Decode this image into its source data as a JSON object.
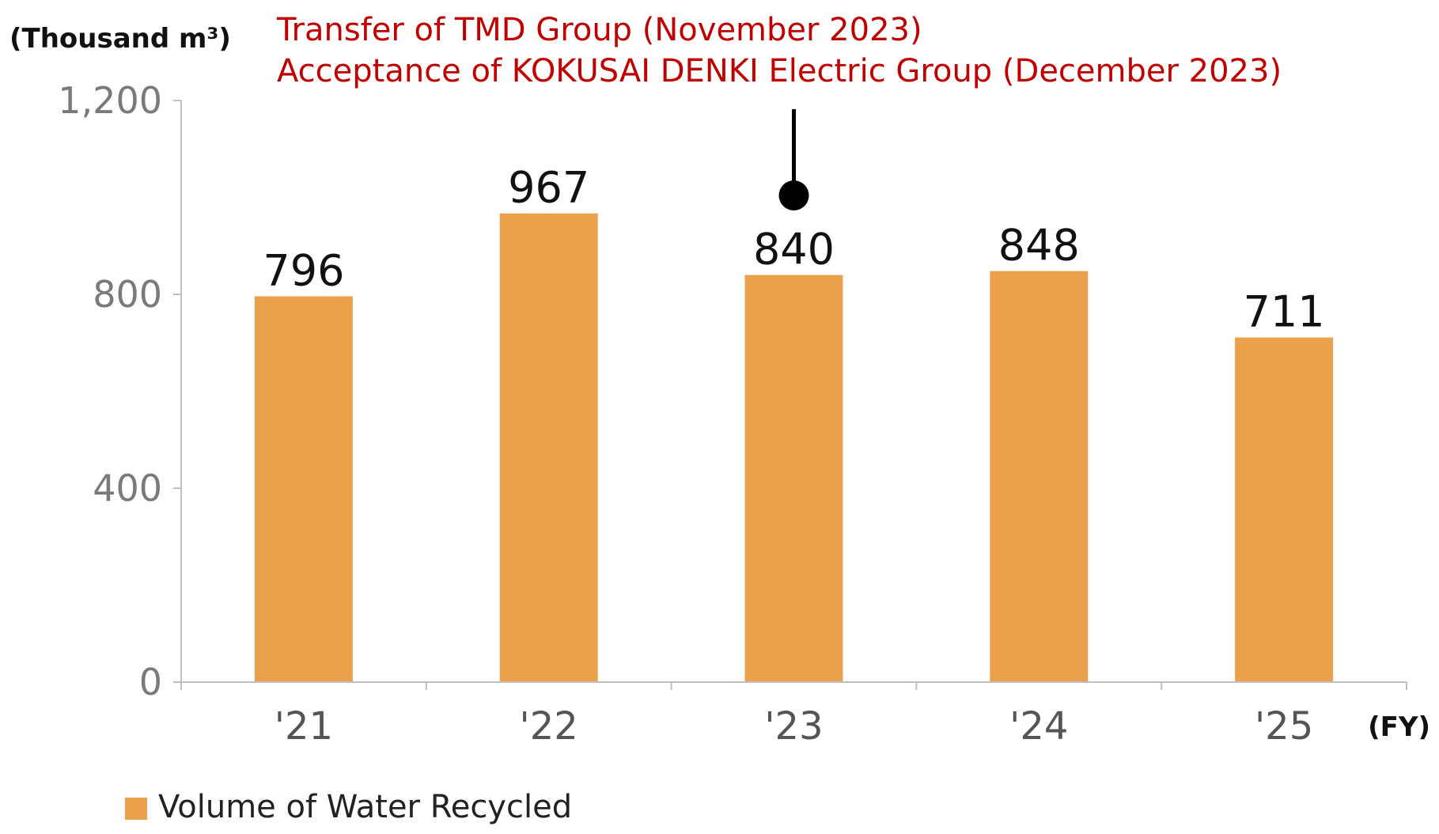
{
  "chart_data": {
    "type": "bar",
    "ylabel": "(Thousand m³)",
    "xlabel": "(FY)",
    "categories": [
      "'21",
      "'22",
      "'23",
      "'24",
      "'25"
    ],
    "series": [
      {
        "name": "Volume of Water Recycled",
        "values": [
          796,
          967,
          840,
          848,
          711
        ]
      }
    ],
    "ylim": [
      0,
      1200
    ],
    "yticks": [
      0,
      400,
      800,
      1200
    ],
    "ytick_labels": [
      "0",
      "400",
      "800",
      "1,200"
    ],
    "bar_color": "#eba14b",
    "grid": false,
    "legend": "bottom-left",
    "annotation": {
      "category": "'23",
      "lines": [
        "Transfer of TMD Group (November 2023)",
        "Acceptance of KOKUSAI DENKI Electric Group (December 2023)"
      ],
      "color": "#c00000"
    }
  }
}
